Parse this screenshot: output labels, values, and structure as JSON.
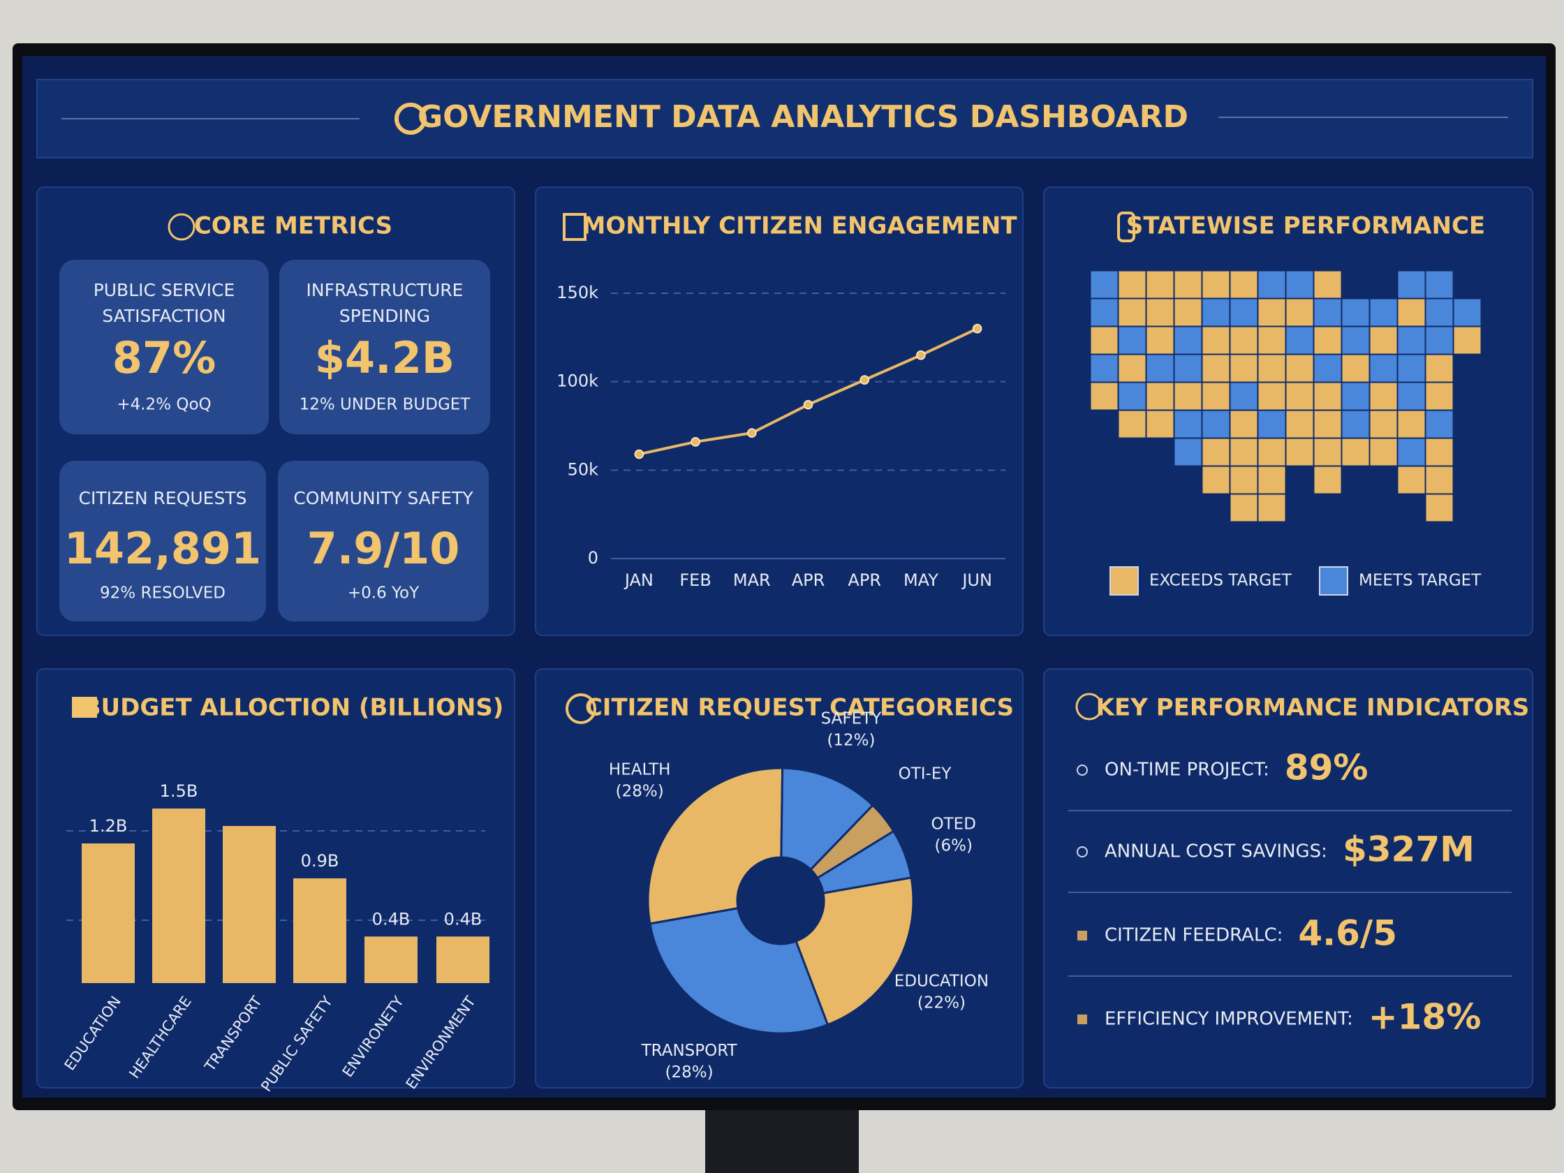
{
  "header": {
    "title": "GOVERNMENT DATA ANALYTICS DASHBOARD"
  },
  "core_metrics": {
    "title": "CORE METRICS",
    "cards": [
      {
        "label": [
          "PUBLIC SERVICE",
          "SATISFACTION"
        ],
        "value": "87%",
        "note": "+4.2% QoQ"
      },
      {
        "label": [
          "INFRASTRUCTURE",
          "SPENDING"
        ],
        "value": "$4.2B",
        "note": "12% UNDER BUDGET"
      },
      {
        "label": [
          "CITIZEN REQUESTS"
        ],
        "value": "142,891",
        "note": "92% RESOLVED"
      },
      {
        "label": [
          "COMMUNITY SAFETY"
        ],
        "value": "7.9/10",
        "note": "+0.6 YoY"
      }
    ]
  },
  "chart_data": [
    {
      "type": "line",
      "title": "MONTHLY CITIZEN ENGAGEMENT",
      "categories": [
        "JAN",
        "FEB",
        "MAR",
        "APR",
        "APR",
        "MAY",
        "JUN"
      ],
      "values": [
        59000,
        66000,
        71000,
        87000,
        101000,
        115000,
        130000
      ],
      "color": "#e8b866",
      "ylim": [
        0,
        150000
      ],
      "yticks": [
        0,
        {
          "value": 50000,
          "label": "50k"
        },
        {
          "value": 100000,
          "label": "100k"
        },
        {
          "value": 150000,
          "label": "150k"
        }
      ],
      "grid": true
    },
    {
      "type": "bar",
      "title": "BUDGET ALLOCTION (BILLIONS)",
      "categories": [
        "EDUCATION",
        "HEALTHCARE",
        "TRANSPORT",
        "PUBLIC SAFETY",
        "ENVIRONETY",
        "ENVIRONMENT"
      ],
      "values": [
        1.2,
        1.5,
        1.35,
        0.9,
        0.4,
        0.4
      ],
      "value_labels": [
        "1.2B",
        "1.5B",
        null,
        "0.9B",
        "0.4B",
        "0.4B"
      ],
      "color": "#e8b866"
    },
    {
      "type": "pie",
      "title": "CITIZEN REQUEST CATEGOREICS",
      "categories": [
        "HEALTH",
        "SAFETY",
        "OTI-EY",
        "OTED",
        "EDUCATION",
        "TRANSPORT"
      ],
      "values": [
        28,
        12,
        4,
        6,
        22,
        28
      ],
      "value_labels": [
        "(28%)",
        "(12%)",
        null,
        "(6%)",
        "(22%)",
        "(28%)"
      ],
      "colors": [
        "#e8b866",
        "#4a86d9",
        "#c9a060",
        "#4a86d9",
        "#e8b866",
        "#4a86d9"
      ],
      "donut": true
    }
  ],
  "state_map": {
    "title": "STATEWISE PERFORMANCE",
    "legend": [
      {
        "label": "EXCEEDS TARGET",
        "color": "#e8b866"
      },
      {
        "label": "MEETS TARGET",
        "color": "#4a86d9"
      }
    ]
  },
  "kpis": {
    "title": "KEY PERFORMANCE INDICATORS",
    "items": [
      {
        "label": "ON-TIME PROJECT:",
        "value": "89%"
      },
      {
        "label": "ANNUAL COST SAVINGS:",
        "value": "$327M"
      },
      {
        "label": "CITIZEN FEEDRALC:",
        "value": "4.6/5"
      },
      {
        "label": "EFFICIENCY IMPROVEMENT:",
        "value": "+18%"
      }
    ]
  }
}
